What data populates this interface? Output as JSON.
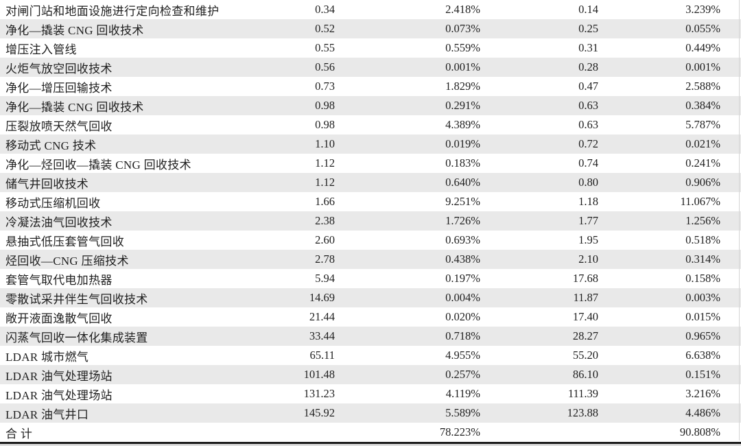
{
  "table": {
    "rows": [
      {
        "name": "对闸门站和地面设施进行定向检查和维护",
        "v1": "0.34",
        "p1": "2.418%",
        "v2": "0.14",
        "p2": "3.239%"
      },
      {
        "name": "净化—撬装 CNG 回收技术",
        "v1": "0.52",
        "p1": "0.073%",
        "v2": "0.25",
        "p2": "0.055%"
      },
      {
        "name": "增压注入管线",
        "v1": "0.55",
        "p1": "0.559%",
        "v2": "0.31",
        "p2": "0.449%"
      },
      {
        "name": "火炬气放空回收技术",
        "v1": "0.56",
        "p1": "0.001%",
        "v2": "0.28",
        "p2": "0.001%"
      },
      {
        "name": "净化—增压回输技术",
        "v1": "0.73",
        "p1": "1.829%",
        "v2": "0.47",
        "p2": "2.588%"
      },
      {
        "name": "净化—撬装 CNG 回收技术",
        "v1": "0.98",
        "p1": "0.291%",
        "v2": "0.63",
        "p2": "0.384%"
      },
      {
        "name": "压裂放喷天然气回收",
        "v1": "0.98",
        "p1": "4.389%",
        "v2": "0.63",
        "p2": "5.787%"
      },
      {
        "name": "移动式 CNG 技术",
        "v1": "1.10",
        "p1": "0.019%",
        "v2": "0.72",
        "p2": "0.021%"
      },
      {
        "name": "净化—烃回收—撬装 CNG 回收技术",
        "v1": "1.12",
        "p1": "0.183%",
        "v2": "0.74",
        "p2": "0.241%"
      },
      {
        "name": "储气井回收技术",
        "v1": "1.12",
        "p1": "0.640%",
        "v2": "0.80",
        "p2": "0.906%"
      },
      {
        "name": "移动式压缩机回收",
        "v1": "1.66",
        "p1": "9.251%",
        "v2": "1.18",
        "p2": "11.067%"
      },
      {
        "name": "冷凝法油气回收技术",
        "v1": "2.38",
        "p1": "1.726%",
        "v2": "1.77",
        "p2": "1.256%"
      },
      {
        "name": "悬抽式低压套管气回收",
        "v1": "2.60",
        "p1": "0.693%",
        "v2": "1.95",
        "p2": "0.518%"
      },
      {
        "name": "烃回收—CNG 压缩技术",
        "v1": "2.78",
        "p1": "0.438%",
        "v2": "2.10",
        "p2": "0.314%"
      },
      {
        "name": "套管气取代电加热器",
        "v1": "5.94",
        "p1": "0.197%",
        "v2": "17.68",
        "p2": "0.158%"
      },
      {
        "name": "零散试采井伴生气回收技术",
        "v1": "14.69",
        "p1": "0.004%",
        "v2": "11.87",
        "p2": "0.003%"
      },
      {
        "name": "敞开液面逸散气回收",
        "v1": "21.44",
        "p1": "0.020%",
        "v2": "17.40",
        "p2": "0.015%"
      },
      {
        "name": "闪蒸气回收一体化集成装置",
        "v1": "33.44",
        "p1": "0.718%",
        "v2": "28.27",
        "p2": "0.965%"
      },
      {
        "name": "LDAR 城市燃气",
        "v1": "65.11",
        "p1": "4.955%",
        "v2": "55.20",
        "p2": "6.638%"
      },
      {
        "name": "LDAR 油气处理场站",
        "v1": "101.48",
        "p1": "0.257%",
        "v2": "86.10",
        "p2": "0.151%"
      },
      {
        "name": "LDAR 油气处理场站",
        "v1": "131.23",
        "p1": "4.119%",
        "v2": "111.39",
        "p2": "3.216%"
      },
      {
        "name": "LDAR 油气井口",
        "v1": "145.92",
        "p1": "5.589%",
        "v2": "123.88",
        "p2": "4.486%"
      },
      {
        "name": "合 计",
        "v1": "",
        "p1": "78.223%",
        "v2": "",
        "p2": "90.808%"
      }
    ]
  },
  "colors": {
    "row_alt_background": "#e9e9e9",
    "bottom_rule_dark": "#171717",
    "bottom_rule_light": "#a6a6a6",
    "text": "#1f1f1f"
  }
}
